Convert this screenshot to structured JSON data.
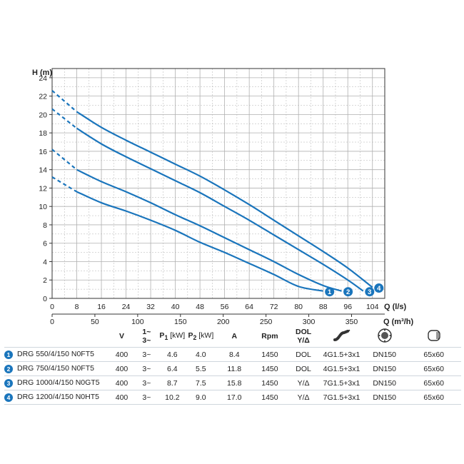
{
  "chart_data": {
    "type": "line",
    "title": "",
    "ylabel": "H (m)",
    "xlabel": "Q (l/s)",
    "x2label": "Q (m³/h)",
    "ylim": [
      0,
      25
    ],
    "xlim": [
      0,
      108
    ],
    "yticks": [
      "0",
      "2",
      "4",
      "6",
      "8",
      "10",
      "12",
      "14",
      "16",
      "18",
      "20",
      "22",
      "24"
    ],
    "xticks": [
      "0",
      "8",
      "16",
      "24",
      "32",
      "40",
      "48",
      "56",
      "64",
      "72",
      "80",
      "88",
      "96",
      "104"
    ],
    "x2ticks": [
      "0",
      "50",
      "100",
      "150",
      "200",
      "250",
      "300",
      "350"
    ],
    "grid": true,
    "line_color": "#1a75bc",
    "series": [
      {
        "name": "1",
        "dashed_until": 8,
        "x": [
          0,
          8,
          16,
          24,
          32,
          40,
          48,
          56,
          64,
          72,
          80,
          88
        ],
        "y": [
          13.2,
          11.6,
          10.4,
          9.5,
          8.5,
          7.4,
          6.1,
          5.0,
          3.8,
          2.6,
          1.3,
          0.8
        ]
      },
      {
        "name": "2",
        "dashed_until": 8,
        "x": [
          0,
          8,
          16,
          24,
          32,
          40,
          48,
          56,
          64,
          72,
          80,
          88,
          94
        ],
        "y": [
          16.2,
          14.0,
          12.7,
          11.6,
          10.4,
          9.1,
          7.9,
          6.6,
          5.3,
          4.0,
          2.6,
          1.4,
          0.8
        ]
      },
      {
        "name": "3",
        "dashed_until": 8,
        "x": [
          0,
          8,
          16,
          24,
          32,
          40,
          48,
          56,
          64,
          72,
          80,
          88,
          96,
          101
        ],
        "y": [
          20.6,
          18.5,
          16.8,
          15.4,
          14.1,
          12.8,
          11.5,
          10.0,
          8.5,
          6.9,
          5.3,
          3.7,
          2.0,
          0.8
        ]
      },
      {
        "name": "4",
        "dashed_until": 8,
        "x": [
          0,
          8,
          16,
          24,
          32,
          40,
          48,
          56,
          64,
          72,
          80,
          88,
          96,
          104
        ],
        "y": [
          22.6,
          20.3,
          18.6,
          17.2,
          15.9,
          14.6,
          13.3,
          11.8,
          10.2,
          8.5,
          6.8,
          5.1,
          3.3,
          1.2
        ]
      }
    ]
  },
  "table": {
    "headers": {
      "v": "V",
      "phase_top": "1~",
      "phase_bottom": "3~",
      "p1_main": "P",
      "p1_sub": "1",
      "p1_unit": " [kW]",
      "p2_main": "P",
      "p2_sub": "2",
      "p2_unit": " [kW]",
      "a": "A",
      "rpm": "Rpm",
      "dol_top": "DOL",
      "dol_bottom": "Y/Δ"
    },
    "rows": [
      {
        "num": "1",
        "model": "DRG 550/4/150 N0FT5",
        "v": "400",
        "phase": "3~",
        "p1": "4.6",
        "p2": "4.0",
        "a": "8.4",
        "rpm": "1450",
        "start": "DOL",
        "cable": "4G1.5+3x1",
        "outlet": "DN150",
        "size": "65x60"
      },
      {
        "num": "2",
        "model": "DRG 750/4/150 N0FT5",
        "v": "400",
        "phase": "3~",
        "p1": "6.4",
        "p2": "5.5",
        "a": "11.8",
        "rpm": "1450",
        "start": "DOL",
        "cable": "4G1.5+3x1",
        "outlet": "DN150",
        "size": "65x60"
      },
      {
        "num": "3",
        "model": "DRG 1000/4/150 N0GT5",
        "v": "400",
        "phase": "3~",
        "p1": "8.7",
        "p2": "7.5",
        "a": "15.8",
        "rpm": "1450",
        "start": "Y/Δ",
        "cable": "7G1.5+3x1",
        "outlet": "DN150",
        "size": "65x60"
      },
      {
        "num": "4",
        "model": "DRG 1200/4/150 N0HT5",
        "v": "400",
        "phase": "3~",
        "p1": "10.2",
        "p2": "9.0",
        "a": "17.0",
        "rpm": "1450",
        "start": "Y/Δ",
        "cable": "7G1.5+3x1",
        "outlet": "DN150",
        "size": "65x60"
      }
    ],
    "icons": {
      "cable": "cable-icon",
      "outlet": "flange-outlet-icon",
      "size": "dimension-box-icon"
    }
  }
}
